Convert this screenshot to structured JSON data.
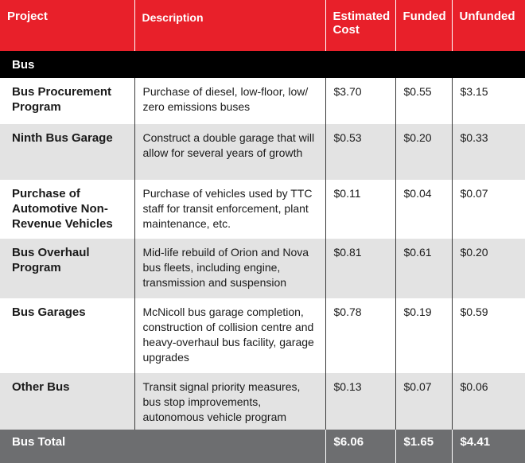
{
  "header": {
    "project": "Project",
    "description": "Description",
    "estimated_cost": "Estimated Cost",
    "funded": "Funded",
    "unfunded": "Unfunded"
  },
  "section": {
    "label": "Bus"
  },
  "rows": [
    {
      "project": "Bus Procurement Program",
      "description": "Purchase of diesel, low-floor, low/ zero emissions buses",
      "cost": "$3.70",
      "funded": "$0.55",
      "unfunded": "$3.15"
    },
    {
      "project": "Ninth Bus Garage",
      "description": "Construct a double garage that will allow for several years of growth",
      "cost": "$0.53",
      "funded": "$0.20",
      "unfunded": "$0.33"
    },
    {
      "project": "Purchase of Automotive Non-Revenue Vehicles",
      "description": "Purchase of vehicles used by TTC staff for transit enforcement, plant maintenance, etc.",
      "cost": "$0.11",
      "funded": "$0.04",
      "unfunded": "$0.07"
    },
    {
      "project": "Bus Overhaul Program",
      "description": "Mid-life rebuild of Orion and Nova bus fleets, including engine, transmission and suspension",
      "cost": "$0.81",
      "funded": "$0.61",
      "unfunded": "$0.20"
    },
    {
      "project": "Bus Garages",
      "description": "McNicoll bus garage completion, construction of collision centre and heavy-overhaul bus facility, garage upgrades",
      "cost": "$0.78",
      "funded": "$0.19",
      "unfunded": "$0.59"
    },
    {
      "project": "Other Bus",
      "description": "Transit signal priority measures, bus stop improvements, autonomous vehicle program",
      "cost": "$0.13",
      "funded": "$0.07",
      "unfunded": "$0.06"
    }
  ],
  "total": {
    "label": "Bus Total",
    "cost": "$6.06",
    "funded": "$1.65",
    "unfunded": "$4.41"
  },
  "colors": {
    "header_red": "#e8202a",
    "section_black": "#000000",
    "shade_gray": "#e3e3e3",
    "total_gray": "#6d6e70"
  }
}
